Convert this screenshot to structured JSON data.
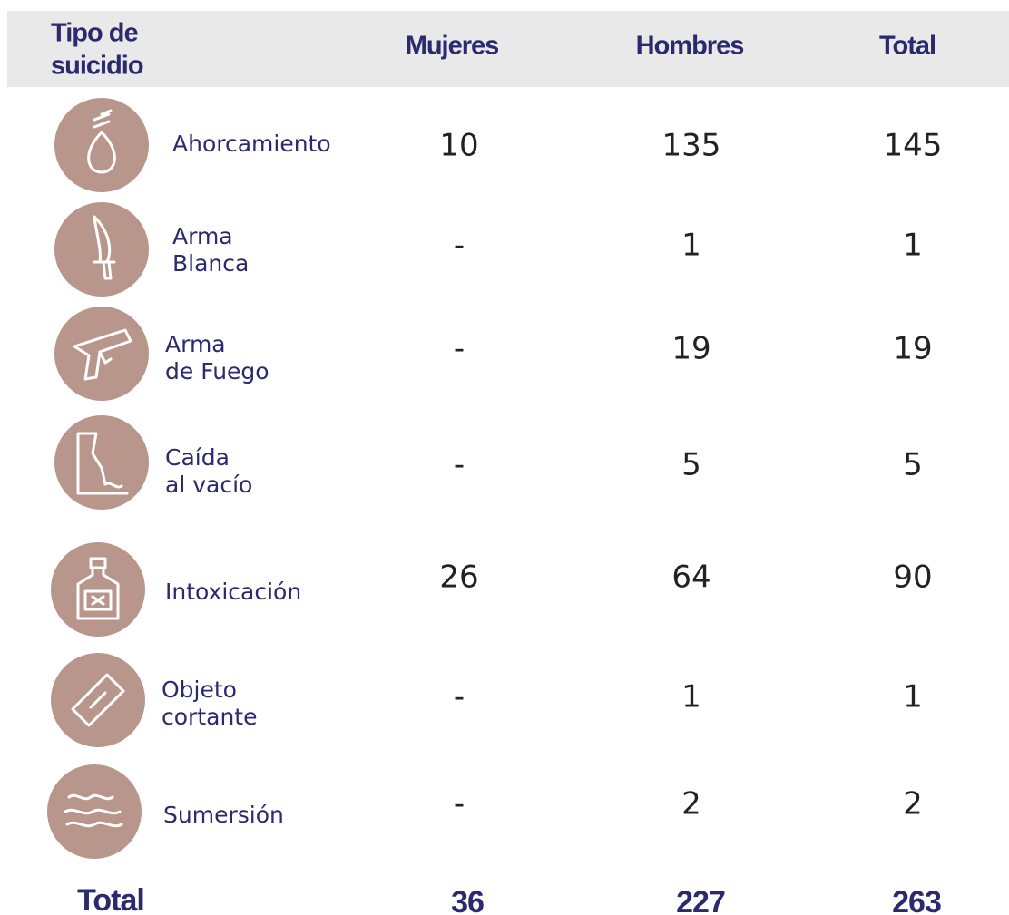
{
  "header": {
    "type": [
      "Tipo de",
      "suicidio"
    ],
    "women": "Mujeres",
    "men": "Hombres",
    "total": "Total"
  },
  "rows": [
    {
      "label": [
        "Ahorcamiento"
      ],
      "women": 10,
      "men": 135,
      "total": 145
    },
    {
      "label": [
        "Arma",
        "Blanca"
      ],
      "women": "-",
      "men": 1,
      "total": 1
    },
    {
      "label": [
        "Arma",
        "de Fuego"
      ],
      "women": "-",
      "men": 19,
      "total": 19
    },
    {
      "label": [
        "Caída",
        "al vacío"
      ],
      "women": "-",
      "men": 5,
      "total": 5
    },
    {
      "label": [
        "Intoxicación"
      ],
      "women": 26,
      "men": 64,
      "total": 90
    },
    {
      "label": [
        "Objeto",
        "cortante"
      ],
      "women": "-",
      "men": 1,
      "total": 1
    },
    {
      "label": [
        "Sumersión"
      ],
      "women": "-",
      "men": 2,
      "total": 2
    }
  ],
  "totals": {
    "label": "Total",
    "women": 36,
    "men": 227,
    "total": 263
  }
}
